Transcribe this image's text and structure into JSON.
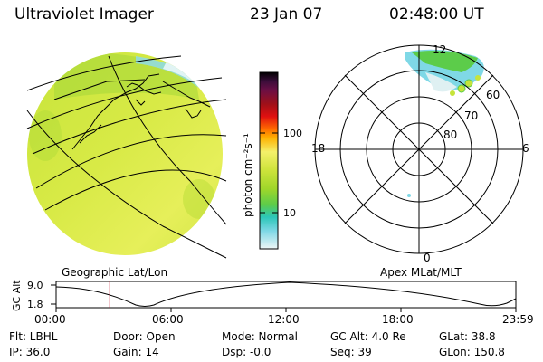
{
  "header": {
    "title": "Ultraviolet Imager",
    "date": "23 Jan 07",
    "time": "02:48:00 UT"
  },
  "colorbar": {
    "unit_label": "photon cm⁻²s⁻¹",
    "ticks": [
      "100",
      "10"
    ],
    "colors": [
      "#000000",
      "#3a0d3a",
      "#6a0f45",
      "#a01018",
      "#e01010",
      "#ff6a00",
      "#ffb000",
      "#f4f06a",
      "#cfe43c",
      "#9fd62a",
      "#5ccc4a",
      "#2cc6b8",
      "#7fd8e6",
      "#dff0f2"
    ]
  },
  "left_panel": {
    "caption": "Geographic Lat/Lon"
  },
  "polar_panel": {
    "caption": "Apex MLat/MLT",
    "mlt_labels": {
      "top": "12",
      "left": "18",
      "right": "6",
      "bottom": "0"
    },
    "lat_labels": [
      "60",
      "70",
      "80"
    ]
  },
  "altitude_plot": {
    "y_axis_label": "GC Alt",
    "y_ticks": [
      "9.0",
      "1.8"
    ],
    "x_ticks": [
      "00:00",
      "06:00",
      "12:00",
      "18:00",
      "23:59"
    ],
    "marker_time_hours": 2.8,
    "marker_color": "#c8102e"
  },
  "footer": {
    "flt": "Flt: LBHL",
    "ip": "IP: 36.0",
    "door": "Door: Open",
    "gain": "Gain: 14",
    "mode": "Mode: Normal",
    "dsp": "Dsp:   -0.0",
    "gcalt": "GC Alt: 4.0 Re",
    "seq": "Seq: 39",
    "glat": "GLat:  38.8",
    "glon": "GLon: 150.8"
  }
}
